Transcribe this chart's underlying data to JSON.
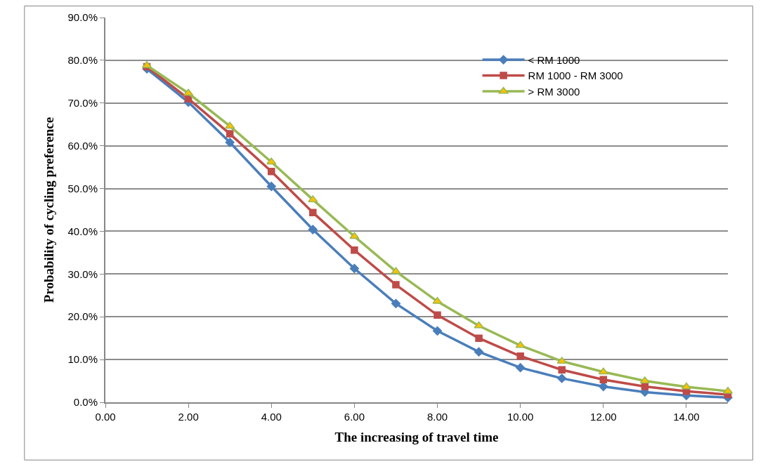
{
  "chart_data": {
    "type": "line",
    "xlabel": "The increasing of travel time",
    "ylabel": "Probability of cycling preference",
    "x": [
      1,
      2,
      3,
      4,
      5,
      6,
      7,
      8,
      9,
      10,
      11,
      12,
      13,
      14,
      15
    ],
    "series": [
      {
        "name": "< RM 1000",
        "color": "#4a7ebb",
        "marker": "diamond",
        "values": [
          78.0,
          70.2,
          60.8,
          50.5,
          40.4,
          31.3,
          23.1,
          16.7,
          11.8,
          8.1,
          5.6,
          3.7,
          2.4,
          1.6,
          1.1
        ]
      },
      {
        "name": "RM 1000 - RM 3000",
        "color": "#be4b48",
        "marker": "square",
        "values": [
          78.5,
          71.0,
          62.8,
          54.0,
          44.4,
          35.6,
          27.5,
          20.4,
          15.0,
          10.8,
          7.6,
          5.3,
          3.7,
          2.6,
          1.8
        ]
      },
      {
        "name": "> RM 3000",
        "color": "#98b954",
        "marker": "triangle",
        "values": [
          78.8,
          72.3,
          64.6,
          56.2,
          47.4,
          38.8,
          30.6,
          23.6,
          17.9,
          13.3,
          9.6,
          7.1,
          5.0,
          3.6,
          2.6
        ]
      }
    ],
    "xlim": [
      0,
      15
    ],
    "xticks": [
      {
        "value": 0,
        "label": "0.00"
      },
      {
        "value": 2,
        "label": "2.00"
      },
      {
        "value": 4,
        "label": "4.00"
      },
      {
        "value": 6,
        "label": "6.00"
      },
      {
        "value": 8,
        "label": "8.00"
      },
      {
        "value": 10,
        "label": "10.00"
      },
      {
        "value": 12,
        "label": "12.00"
      },
      {
        "value": 14,
        "label": "14.00"
      }
    ],
    "ylim": [
      0,
      90
    ],
    "yticks": [
      {
        "value": 0,
        "label": "0.0%"
      },
      {
        "value": 10,
        "label": "10.0%"
      },
      {
        "value": 20,
        "label": "20.0%"
      },
      {
        "value": 30,
        "label": "30.0%"
      },
      {
        "value": 40,
        "label": "40.0%"
      },
      {
        "value": 50,
        "label": "50.0%"
      },
      {
        "value": 60,
        "label": "60.0%"
      },
      {
        "value": 70,
        "label": "70.0%"
      },
      {
        "value": 80,
        "label": "80.0%"
      },
      {
        "value": 90,
        "label": "90.0%"
      }
    ],
    "grid": "y",
    "legend": "top right",
    "line_style": "solid"
  }
}
